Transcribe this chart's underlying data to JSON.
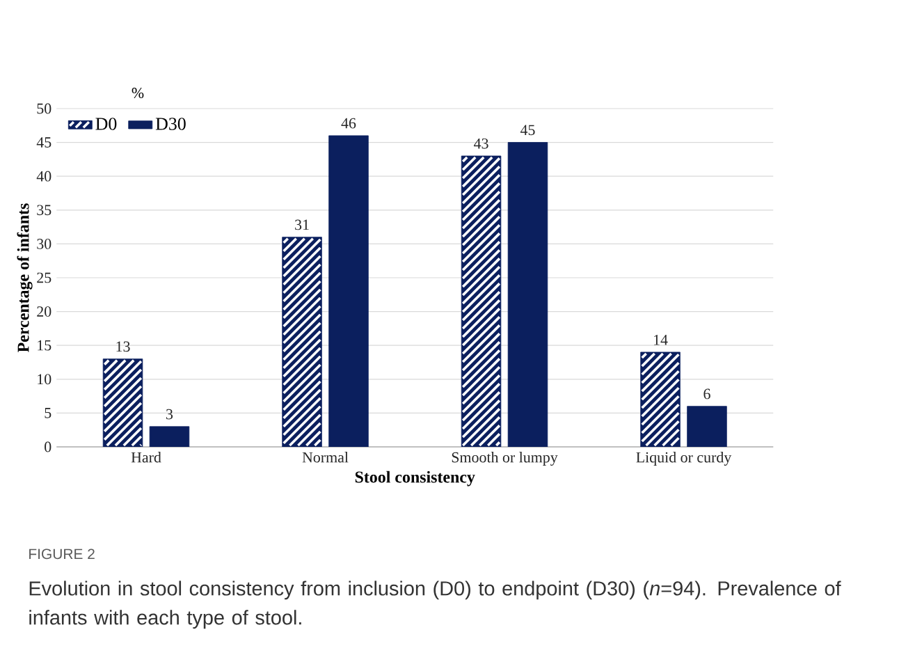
{
  "chart_data": {
    "type": "bar",
    "xlabel": "Stool consistency",
    "ylabel": "Percentage of infants",
    "categories": [
      "Hard",
      "Normal",
      "Smooth or lumpy",
      "Liquid or curdy"
    ],
    "series": [
      {
        "name": "D0",
        "color": "#0b1f5e",
        "values": [
          13,
          31,
          43,
          14
        ]
      },
      {
        "name": "D30",
        "color": "#0b1f5e",
        "values": [
          3,
          46,
          45,
          6
        ]
      }
    ],
    "ylim": [
      0,
      50
    ],
    "yticks": [
      0,
      5,
      10,
      15,
      20,
      25,
      30,
      35,
      40,
      45,
      50
    ],
    "grid": "y",
    "legend": "top left",
    "data_labels": true,
    "annotations": [
      "%",
      "FIGURE 2",
      "Evolution in stool consistency from inclusion (D0) to endpoint (D30) (*n*=94). Prevalence of infants with each type of stool."
    ]
  }
}
